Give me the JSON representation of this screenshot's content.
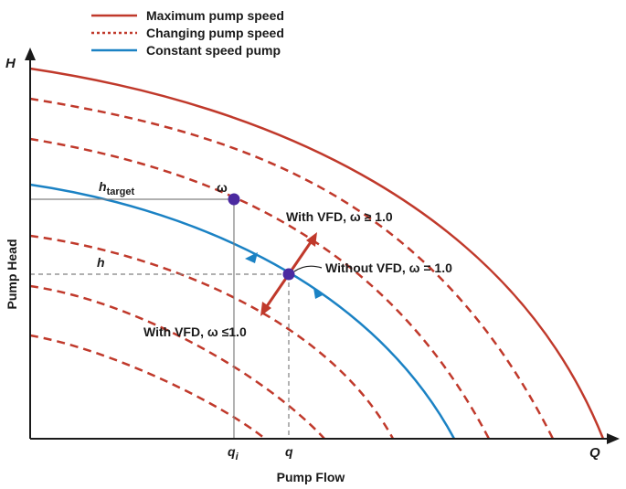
{
  "legend": {
    "max_speed": "Maximum pump speed",
    "changing_speed": "Changing pump speed",
    "constant_speed": "Constant speed pump"
  },
  "axes": {
    "y_letter": "H",
    "x_letter": "Q",
    "y_title": "Pump Head",
    "x_title": "Pump Flow"
  },
  "labels": {
    "h_target_base": "h",
    "h_target_sub": "target",
    "omega": "ω",
    "h": "h",
    "q_i_base": "q",
    "q_i_sub": "i",
    "q": "q",
    "vfd_up": "With VFD, ω ≥ 1.0",
    "vfd_none": "Without VFD, ω = 1.0",
    "vfd_down": "With VFD, ω ≤1.0"
  },
  "colors": {
    "max_speed": "#c0392b",
    "changing_speed": "#c0392b",
    "constant_speed": "#1b82c4",
    "marker": "#4b2aa0",
    "arrow": "#c0392b",
    "guide": "#808080"
  }
}
